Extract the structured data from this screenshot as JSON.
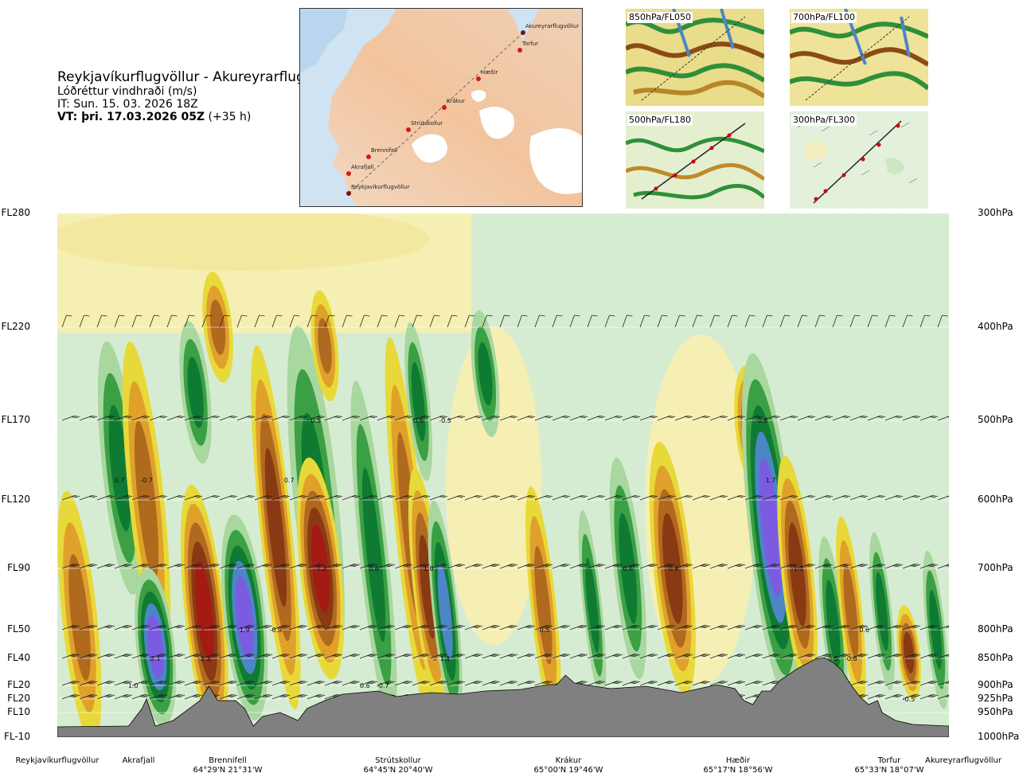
{
  "title": {
    "route": "Reykjavíkurflugvöllur - Akureyrarflugvöllur",
    "variable": "Lóðréttur vindhraði (m/s)",
    "issue_time": "IT: Sun. 15. 03. 2026 18Z",
    "valid_time_bold": "VT: þri. 17.03.2026 05Z",
    "valid_time_lead": "(+35 h)"
  },
  "route_map": {
    "points": [
      {
        "name": "Akureyrarflugvöllur"
      },
      {
        "name": "Torfur"
      },
      {
        "name": "Hæðir"
      },
      {
        "name": "Krákur"
      },
      {
        "name": "Strútskollur"
      },
      {
        "name": "Brennifell"
      },
      {
        "name": "Akrafjall"
      },
      {
        "name": "Reykjavíkurflugvöllur"
      }
    ]
  },
  "mini_maps": [
    {
      "label": "850hPa/FL050"
    },
    {
      "label": "700hPa/FL100"
    },
    {
      "label": "500hPa/FL180"
    },
    {
      "label": "300hPa/FL300"
    }
  ],
  "chart_data": {
    "type": "heatmap",
    "title": "Lóðréttur vindhraði (m/s)",
    "left_axis_labels": [
      "FL280",
      "FL220",
      "FL170",
      "FL120",
      "FL90",
      "FL50",
      "FL40",
      "FL20",
      "FL20",
      "FL10",
      "FL-10"
    ],
    "right_axis_labels": [
      "300hPa",
      "400hPa",
      "500hPa",
      "600hPa",
      "700hPa",
      "800hPa",
      "850hPa",
      "900hPa",
      "925hPa",
      "950hPa",
      "1000hPa"
    ],
    "pressure_levels_hpa": [
      300,
      400,
      500,
      600,
      700,
      800,
      850,
      900,
      925,
      950,
      1000
    ],
    "x_range": [
      0,
      1
    ],
    "colors": {
      "strong_up": "#7b5ce0",
      "up_blue": "#4b86c6",
      "up_green_dark": "#0f7a32",
      "up_green": "#3aa043",
      "up_green_light": "#a8d7a0",
      "neutral_light": "#d6ecd2",
      "neutral_yellow": "#f6efb3",
      "down_yellow": "#e8d93a",
      "down_orange": "#e0a12a",
      "down_brown": "#b06a1e",
      "down_dark": "#8a3a12",
      "strong_down": "#a41b14",
      "terrain": "#808080"
    },
    "value_labels": [
      {
        "x": 0.07,
        "p": 575,
        "value": "0.7"
      },
      {
        "x": 0.1,
        "p": 575,
        "value": "-0.7"
      },
      {
        "x": 0.26,
        "p": 575,
        "value": "0.7"
      },
      {
        "x": 0.29,
        "p": 500,
        "value": "0.5"
      },
      {
        "x": 0.405,
        "p": 500,
        "value": "0.6"
      },
      {
        "x": 0.435,
        "p": 500,
        "value": "-0.5"
      },
      {
        "x": 0.79,
        "p": 500,
        "value": "-0.8"
      },
      {
        "x": 0.8,
        "p": 575,
        "value": "1.7"
      },
      {
        "x": 0.295,
        "p": 700,
        "value": "-1.2"
      },
      {
        "x": 0.355,
        "p": 700,
        "value": "0.6"
      },
      {
        "x": 0.415,
        "p": 700,
        "value": "-1.0"
      },
      {
        "x": 0.64,
        "p": 700,
        "value": "0.6"
      },
      {
        "x": 0.69,
        "p": 700,
        "value": "-0.8"
      },
      {
        "x": 0.83,
        "p": 700,
        "value": "-1.1"
      },
      {
        "x": 0.21,
        "p": 800,
        "value": "1.9"
      },
      {
        "x": 0.245,
        "p": 800,
        "value": "-0.9"
      },
      {
        "x": 0.545,
        "p": 800,
        "value": "-0.5"
      },
      {
        "x": 0.905,
        "p": 800,
        "value": "0.6"
      },
      {
        "x": 0.11,
        "p": 850,
        "value": "2.1"
      },
      {
        "x": 0.165,
        "p": 850,
        "value": "-2.3"
      },
      {
        "x": 0.435,
        "p": 850,
        "value": "1.1"
      },
      {
        "x": 0.87,
        "p": 850,
        "value": "0.5"
      },
      {
        "x": 0.89,
        "p": 850,
        "value": "-0.6"
      },
      {
        "x": 0.085,
        "p": 900,
        "value": "1.0"
      },
      {
        "x": 0.345,
        "p": 900,
        "value": "0.6"
      },
      {
        "x": 0.365,
        "p": 900,
        "value": "-0.7"
      },
      {
        "x": 0.955,
        "p": 925,
        "value": "-0.5"
      }
    ]
  },
  "locations": [
    {
      "name": "Reykjavíkurflugvöllur",
      "coord": ""
    },
    {
      "name": "Akrafjall",
      "coord": ""
    },
    {
      "name": "Brennifell",
      "coord": "64°29'N 21°31'W"
    },
    {
      "name": "Strútskollur",
      "coord": "64°45'N 20°40'W"
    },
    {
      "name": "Krákur",
      "coord": "65°00'N 19°46'W"
    },
    {
      "name": "Hæðir",
      "coord": "65°17'N 18°56'W"
    },
    {
      "name": "Torfur",
      "coord": "65°33'N 18°07'W"
    },
    {
      "name": "Akureyrarflugvöllur",
      "coord": ""
    }
  ]
}
